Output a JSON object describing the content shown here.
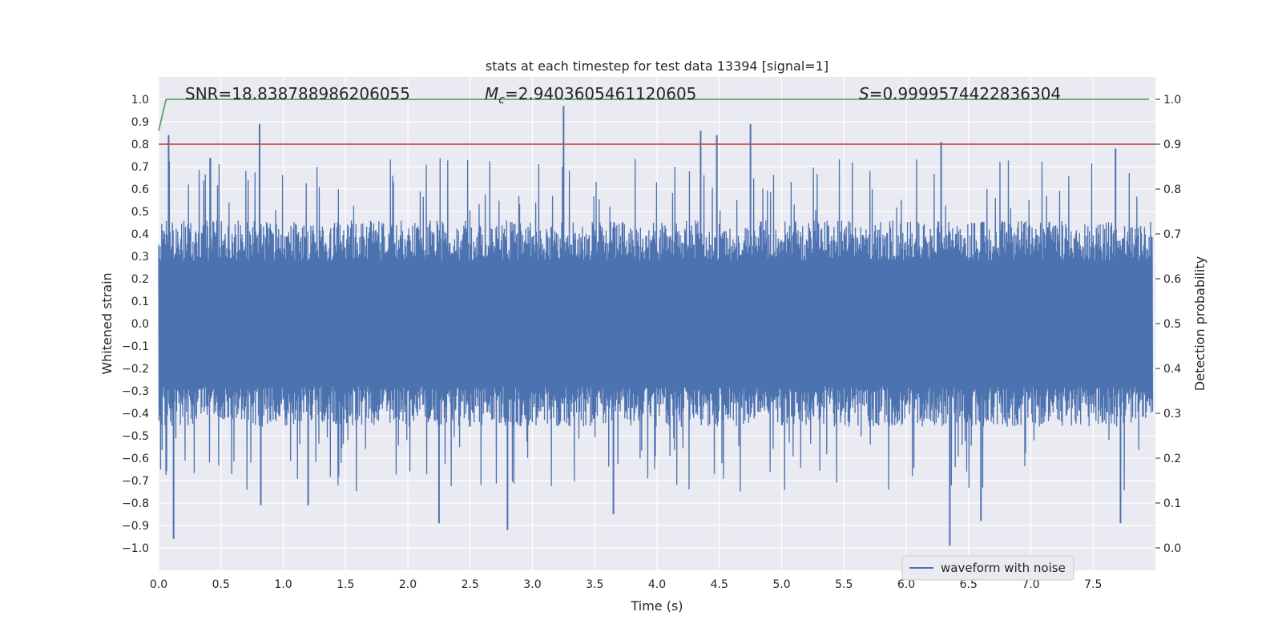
{
  "chart_data": {
    "type": "line",
    "title": "stats at each timestep for test data 13394 [signal=1]",
    "xlabel": "Time (s)",
    "ylabel_left": "Whitened strain",
    "ylabel_right": "Detection probability",
    "xlim": [
      0.0,
      8.0
    ],
    "ylim_left": [
      -1.1,
      1.1
    ],
    "ylim_right": [
      -0.05,
      1.05
    ],
    "x_ticks": [
      "0.0",
      "0.5",
      "1.0",
      "1.5",
      "2.0",
      "2.5",
      "3.0",
      "3.5",
      "4.0",
      "4.5",
      "5.0",
      "5.5",
      "6.0",
      "6.5",
      "7.0",
      "7.5"
    ],
    "y_left_ticks": [
      "1.0",
      "0.9",
      "0.8",
      "0.7",
      "0.6",
      "0.5",
      "0.4",
      "0.3",
      "0.2",
      "0.1",
      "0.0",
      "−0.1",
      "−0.2",
      "−0.3",
      "−0.4",
      "−0.5",
      "−0.6",
      "−0.7",
      "−0.8",
      "−0.9",
      "−1.0"
    ],
    "y_right_ticks": [
      "1.0",
      "0.9",
      "0.8",
      "0.7",
      "0.6",
      "0.5",
      "0.4",
      "0.3",
      "0.2",
      "0.1",
      "0.0"
    ],
    "annotations": {
      "snr": "SNR=18.838788986206055",
      "mc_symbol": "M",
      "mc_subscript": "c",
      "mc_value": "=2.9403605461120605",
      "s_symbol": "S",
      "s_value": "=0.9999574422836304"
    },
    "grid": true,
    "legend_position": "lower-right",
    "series": [
      {
        "name": "waveform with noise",
        "axis": "left",
        "color": "#4c72b0",
        "description_peaks": {
          "max_positive": [
            [
              0.08,
              0.84
            ],
            [
              0.81,
              0.89
            ],
            [
              3.25,
              0.97
            ],
            [
              4.35,
              0.86
            ],
            [
              4.48,
              0.84
            ],
            [
              4.75,
              0.89
            ],
            [
              6.28,
              0.81
            ],
            [
              7.68,
              0.78
            ]
          ],
          "max_negative": [
            [
              0.12,
              -0.96
            ],
            [
              0.82,
              -0.81
            ],
            [
              1.2,
              -0.81
            ],
            [
              2.25,
              -0.89
            ],
            [
              2.8,
              -0.92
            ],
            [
              3.65,
              -0.85
            ],
            [
              6.35,
              -0.99
            ],
            [
              6.6,
              -0.88
            ],
            [
              7.72,
              -0.89
            ]
          ]
        }
      },
      {
        "axis": "right",
        "color": "#c44e52",
        "constant": 0.9
      },
      {
        "axis": "right",
        "color": "#55a868",
        "points": [
          [
            0.0,
            0.93
          ],
          [
            0.06,
            1.0
          ],
          [
            7.95,
            1.0
          ]
        ]
      }
    ]
  }
}
